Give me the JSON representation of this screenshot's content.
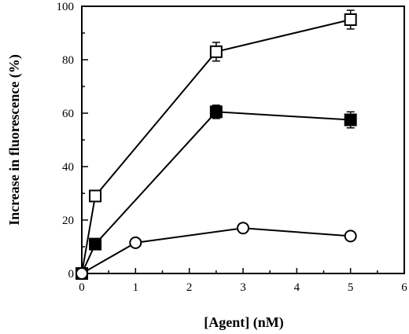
{
  "chart_data": {
    "type": "line",
    "title": "",
    "xlabel": "[Agent]  (nM)",
    "ylabel": "Increase  in  fluorescence  (%)",
    "xlim": [
      0,
      6
    ],
    "ylim": [
      0,
      100
    ],
    "x_ticks": [
      "0",
      "1",
      "2",
      "3",
      "4",
      "5",
      "6"
    ],
    "y_ticks": [
      "0",
      "20",
      "40",
      "60",
      "80",
      "100"
    ],
    "grid": false,
    "legend": "none",
    "series": [
      {
        "marker": "open-square",
        "color": "#000000",
        "points": [
          {
            "x": 0,
            "y": 0
          },
          {
            "x": 0.25,
            "y": 29
          },
          {
            "x": 2.5,
            "y": 83,
            "err": 3.5
          },
          {
            "x": 5,
            "y": 95,
            "err": 3.5
          }
        ]
      },
      {
        "marker": "filled-square",
        "color": "#000000",
        "points": [
          {
            "x": 0,
            "y": 0
          },
          {
            "x": 0.25,
            "y": 11
          },
          {
            "x": 2.5,
            "y": 60.5,
            "err": 2.5
          },
          {
            "x": 5,
            "y": 57.5,
            "err": 3
          }
        ]
      },
      {
        "marker": "open-circle",
        "color": "#000000",
        "points": [
          {
            "x": 0,
            "y": 0
          },
          {
            "x": 1,
            "y": 11.5
          },
          {
            "x": 3,
            "y": 17
          },
          {
            "x": 5,
            "y": 14
          }
        ]
      }
    ]
  }
}
